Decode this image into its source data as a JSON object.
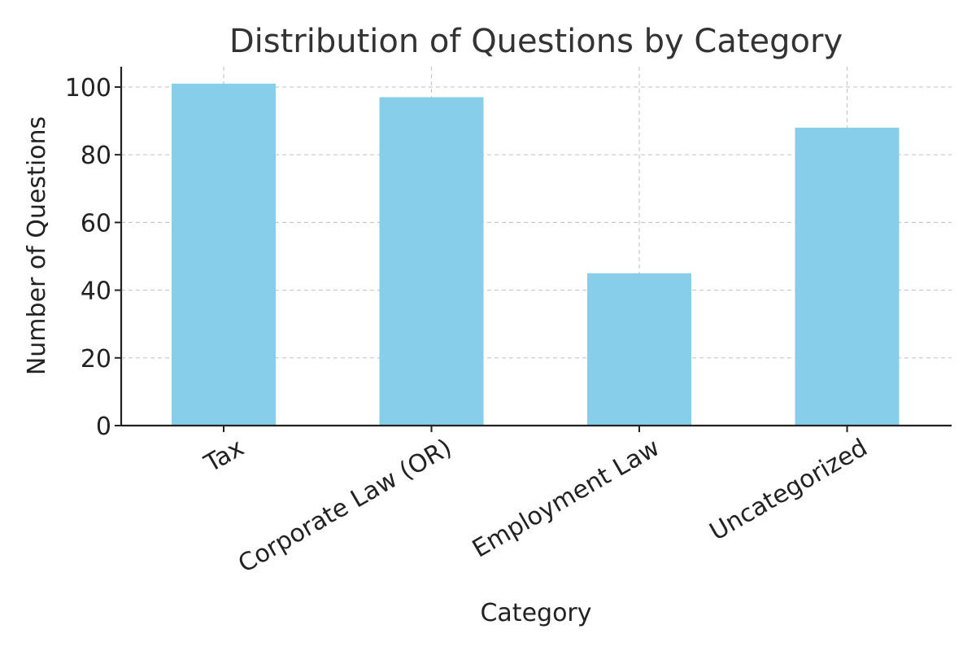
{
  "chart_data": {
    "type": "bar",
    "title": "Distribution of Questions by Category",
    "xlabel": "Category",
    "ylabel": "Number of Questions",
    "categories": [
      "Tax",
      "Corporate Law (OR)",
      "Employment Law",
      "Uncategorized"
    ],
    "values": [
      101,
      97,
      45,
      88
    ],
    "yticks": [
      0,
      20,
      40,
      60,
      80,
      100
    ],
    "ylim": [
      0,
      106
    ],
    "grid": true,
    "legend": "none",
    "colors": {
      "bar": "#87CEEB",
      "grid": "#c7c7c7",
      "axis": "#222222",
      "title": "#333333"
    }
  }
}
